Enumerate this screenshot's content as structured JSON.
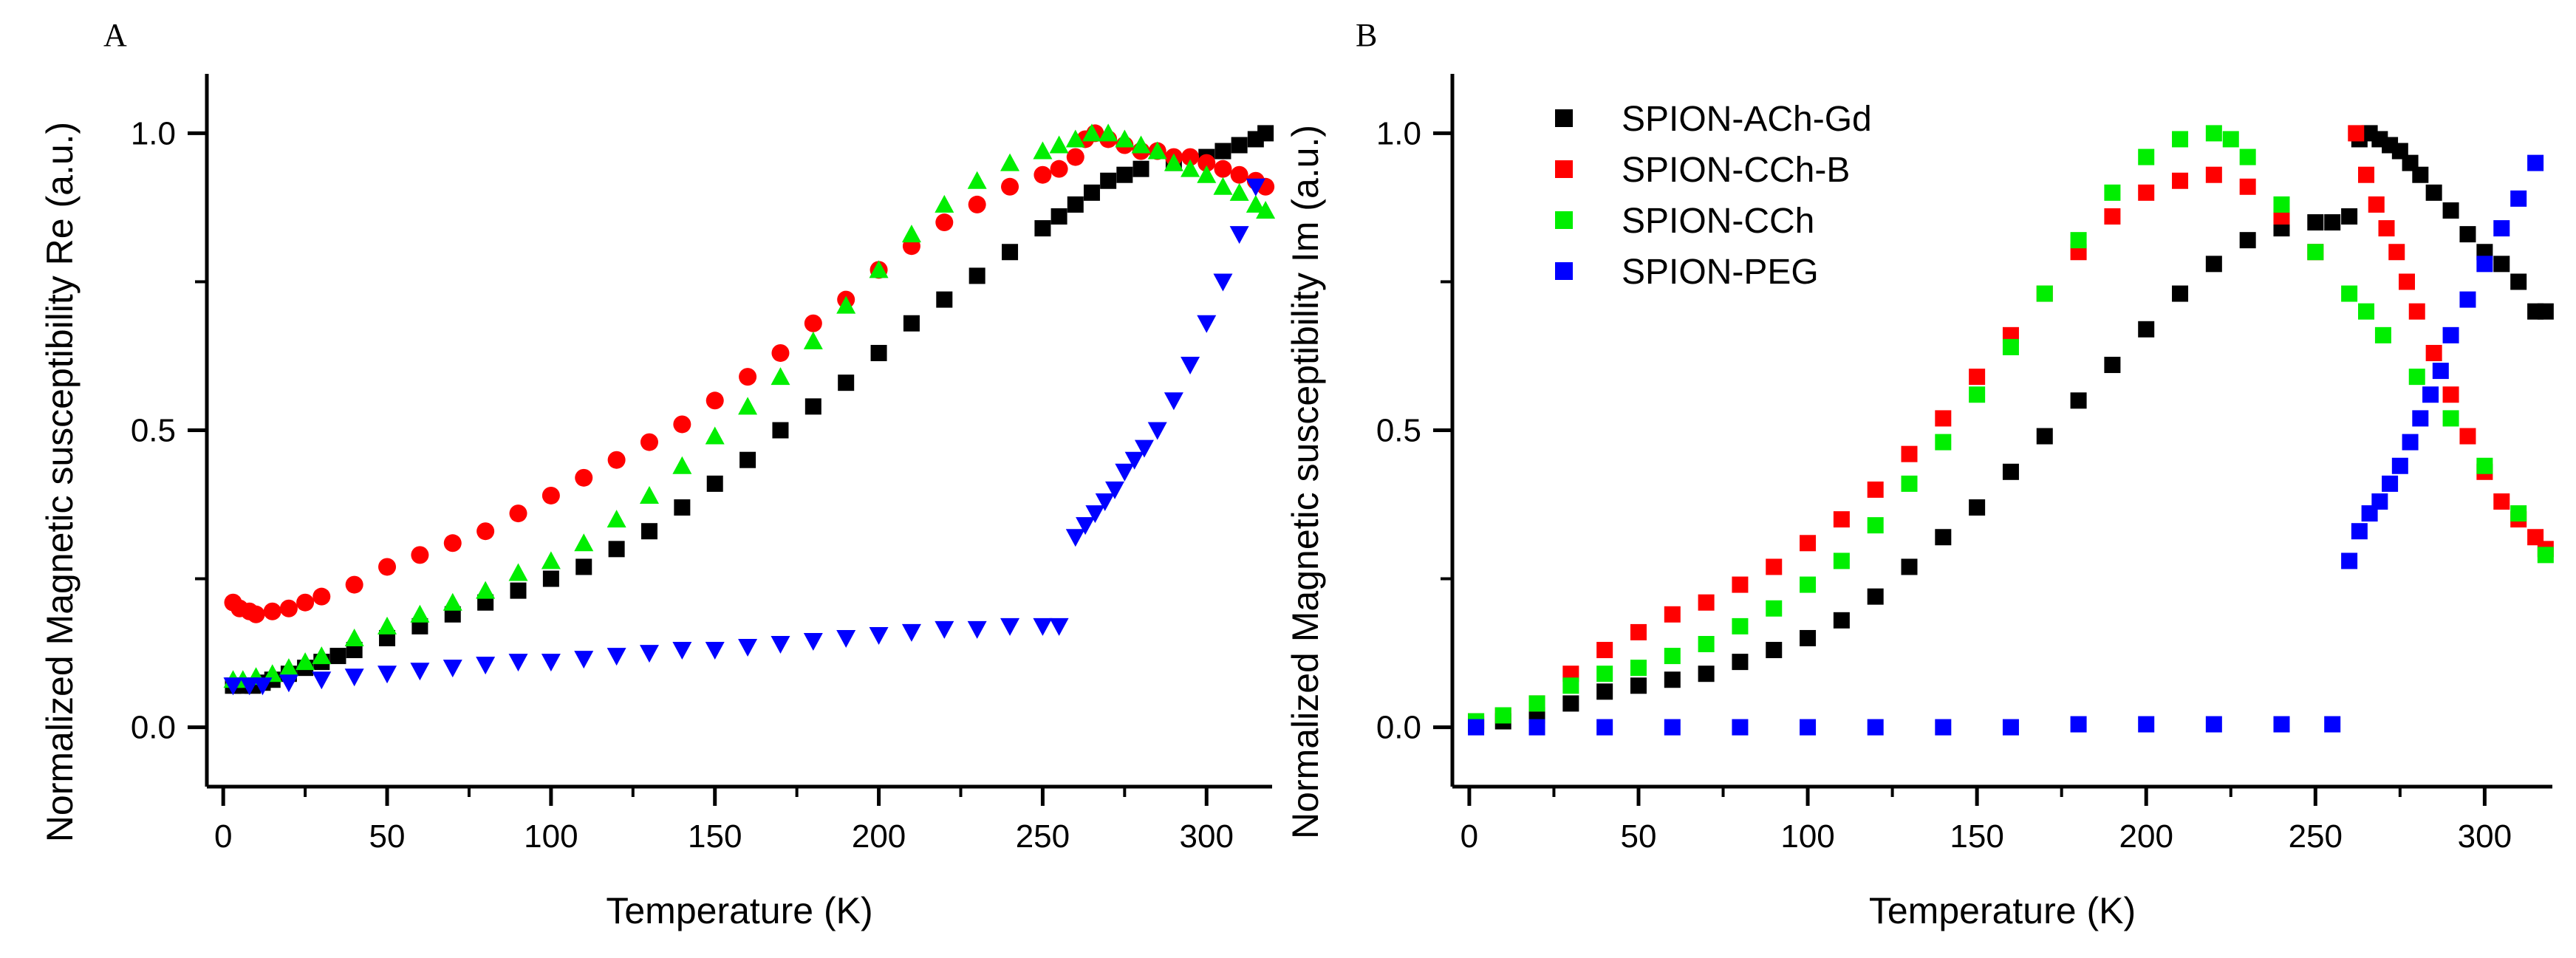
{
  "figure": {
    "panels": [
      "A",
      "B"
    ]
  },
  "legend": {
    "placement": "top-left of panel B",
    "entries": [
      {
        "name": "SPION-ACh-Gd",
        "color": "#000000"
      },
      {
        "name": "SPION-CCh-B",
        "color": "#ff0000"
      },
      {
        "name": "SPION-CCh",
        "color": "#00ee00"
      },
      {
        "name": "SPION-PEG",
        "color": "#0000ff"
      }
    ]
  },
  "chart_data": [
    {
      "type": "scatter",
      "panel": "A",
      "xlabel": "Temperature (K)",
      "ylabel": "Normalized Magnetic susceptibility Re (a.u.)",
      "xlim": [
        -5,
        320
      ],
      "ylim": [
        -0.1,
        1.1
      ],
      "xticks": [
        "0",
        "50",
        "100",
        "150",
        "200",
        "250",
        "300"
      ],
      "xtick_values": [
        0,
        50,
        100,
        150,
        200,
        250,
        300
      ],
      "yticks": [
        "0.0",
        "0.5",
        "1.0"
      ],
      "ytick_values": [
        0,
        0.5,
        1.0
      ],
      "yminor_values": [
        0.25,
        0.75
      ],
      "series": [
        {
          "name": "SPION-ACh-Gd",
          "color": "#000000",
          "marker": "square",
          "x": [
            3,
            6,
            9,
            12,
            15,
            20,
            25,
            30,
            35,
            40,
            50,
            60,
            70,
            80,
            90,
            100,
            110,
            120,
            130,
            140,
            150,
            160,
            170,
            180,
            190,
            200,
            210,
            220,
            230,
            240,
            250,
            255,
            260,
            265,
            270,
            275,
            280,
            290,
            300,
            305,
            310,
            315,
            318
          ],
          "y": [
            0.07,
            0.07,
            0.07,
            0.075,
            0.08,
            0.09,
            0.1,
            0.11,
            0.12,
            0.13,
            0.15,
            0.17,
            0.19,
            0.21,
            0.23,
            0.25,
            0.27,
            0.3,
            0.33,
            0.37,
            0.41,
            0.45,
            0.5,
            0.54,
            0.58,
            0.63,
            0.68,
            0.72,
            0.76,
            0.8,
            0.84,
            0.86,
            0.88,
            0.9,
            0.92,
            0.93,
            0.94,
            0.95,
            0.96,
            0.97,
            0.98,
            0.99,
            1.0
          ]
        },
        {
          "name": "SPION-CCh-B",
          "color": "#ff0000",
          "marker": "circle",
          "x": [
            3,
            5,
            8,
            10,
            15,
            20,
            25,
            30,
            40,
            50,
            60,
            70,
            80,
            90,
            100,
            110,
            120,
            130,
            140,
            150,
            160,
            170,
            180,
            190,
            200,
            210,
            220,
            230,
            240,
            250,
            255,
            260,
            263,
            266,
            270,
            275,
            280,
            285,
            290,
            295,
            300,
            305,
            310,
            315,
            318
          ],
          "y": [
            0.21,
            0.2,
            0.195,
            0.19,
            0.195,
            0.2,
            0.21,
            0.22,
            0.24,
            0.27,
            0.29,
            0.31,
            0.33,
            0.36,
            0.39,
            0.42,
            0.45,
            0.48,
            0.51,
            0.55,
            0.59,
            0.63,
            0.68,
            0.72,
            0.77,
            0.81,
            0.85,
            0.88,
            0.91,
            0.93,
            0.94,
            0.96,
            0.99,
            1.0,
            0.99,
            0.98,
            0.97,
            0.97,
            0.96,
            0.96,
            0.95,
            0.94,
            0.93,
            0.92,
            0.91
          ]
        },
        {
          "name": "SPION-CCh",
          "color": "#00ee00",
          "marker": "triangle-up",
          "x": [
            3,
            6,
            10,
            15,
            20,
            25,
            30,
            40,
            50,
            60,
            70,
            80,
            90,
            100,
            110,
            120,
            130,
            140,
            150,
            160,
            170,
            180,
            190,
            200,
            210,
            220,
            230,
            240,
            250,
            255,
            260,
            265,
            270,
            275,
            280,
            285,
            290,
            295,
            300,
            305,
            310,
            315,
            318
          ],
          "y": [
            0.08,
            0.08,
            0.085,
            0.09,
            0.1,
            0.11,
            0.12,
            0.15,
            0.17,
            0.19,
            0.21,
            0.23,
            0.26,
            0.28,
            0.31,
            0.35,
            0.39,
            0.44,
            0.49,
            0.54,
            0.59,
            0.65,
            0.71,
            0.77,
            0.83,
            0.88,
            0.92,
            0.95,
            0.97,
            0.98,
            0.99,
            1.0,
            1.0,
            0.99,
            0.98,
            0.97,
            0.95,
            0.94,
            0.93,
            0.91,
            0.9,
            0.88,
            0.87
          ]
        },
        {
          "name": "SPION-PEG",
          "color": "#0000ff",
          "marker": "triangle-down",
          "x": [
            3,
            8,
            12,
            20,
            30,
            40,
            50,
            60,
            70,
            80,
            90,
            100,
            110,
            120,
            130,
            140,
            150,
            160,
            170,
            180,
            190,
            200,
            210,
            220,
            230,
            240,
            250,
            255,
            260,
            263,
            266,
            269,
            272,
            275,
            278,
            281,
            285,
            290,
            295,
            300,
            305,
            310,
            315
          ],
          "y": [
            0.07,
            0.07,
            0.07,
            0.075,
            0.08,
            0.085,
            0.09,
            0.095,
            0.1,
            0.105,
            0.11,
            0.11,
            0.115,
            0.12,
            0.125,
            0.13,
            0.13,
            0.135,
            0.14,
            0.145,
            0.15,
            0.155,
            0.16,
            0.165,
            0.165,
            0.17,
            0.17,
            0.17,
            0.32,
            0.34,
            0.36,
            0.38,
            0.4,
            0.43,
            0.45,
            0.47,
            0.5,
            0.55,
            0.61,
            0.68,
            0.75,
            0.83,
            0.91
          ]
        }
      ]
    },
    {
      "type": "scatter",
      "panel": "B",
      "xlabel": "Temperature (K)",
      "ylabel": "Normalized Magnetic susceptibility Im (a.u.)",
      "xlim": [
        -5,
        320
      ],
      "ylim": [
        -0.1,
        1.1
      ],
      "xticks": [
        "0",
        "50",
        "100",
        "150",
        "200",
        "250",
        "300"
      ],
      "xtick_values": [
        0,
        50,
        100,
        150,
        200,
        250,
        300
      ],
      "yticks": [
        "0.0",
        "0.5",
        "1.0"
      ],
      "ytick_values": [
        0,
        0.5,
        1.0
      ],
      "yminor_values": [
        0.25,
        0.75
      ],
      "series": [
        {
          "name": "SPION-ACh-Gd",
          "color": "#000000",
          "marker": "square",
          "x": [
            2,
            10,
            20,
            30,
            40,
            50,
            60,
            70,
            80,
            90,
            100,
            110,
            120,
            130,
            140,
            150,
            160,
            170,
            180,
            190,
            200,
            210,
            220,
            230,
            240,
            250,
            255,
            260,
            263,
            266,
            269,
            272,
            275,
            278,
            281,
            285,
            290,
            295,
            300,
            305,
            310,
            315,
            318
          ],
          "y": [
            0.005,
            0.01,
            0.02,
            0.04,
            0.06,
            0.07,
            0.08,
            0.09,
            0.11,
            0.13,
            0.15,
            0.18,
            0.22,
            0.27,
            0.32,
            0.37,
            0.43,
            0.49,
            0.55,
            0.61,
            0.67,
            0.73,
            0.78,
            0.82,
            0.84,
            0.85,
            0.85,
            0.86,
            0.99,
            1.0,
            0.99,
            0.98,
            0.97,
            0.95,
            0.93,
            0.9,
            0.87,
            0.83,
            0.8,
            0.78,
            0.75,
            0.7,
            0.7
          ]
        },
        {
          "name": "SPION-CCh-B",
          "color": "#ff0000",
          "marker": "square",
          "x": [
            2,
            10,
            20,
            30,
            40,
            50,
            60,
            70,
            80,
            90,
            100,
            110,
            120,
            130,
            140,
            150,
            160,
            170,
            180,
            190,
            200,
            210,
            220,
            230,
            240,
            250,
            262,
            265,
            268,
            271,
            274,
            277,
            280,
            285,
            290,
            295,
            300,
            305,
            310,
            315,
            318
          ],
          "y": [
            0.01,
            0.02,
            0.04,
            0.09,
            0.13,
            0.16,
            0.19,
            0.21,
            0.24,
            0.27,
            0.31,
            0.35,
            0.4,
            0.46,
            0.52,
            0.59,
            0.66,
            0.73,
            0.8,
            0.86,
            0.9,
            0.92,
            0.93,
            0.91,
            0.86,
            0.8,
            1.0,
            0.93,
            0.88,
            0.84,
            0.8,
            0.75,
            0.7,
            0.63,
            0.56,
            0.49,
            0.43,
            0.38,
            0.35,
            0.32,
            0.3
          ]
        },
        {
          "name": "SPION-CCh",
          "color": "#00ee00",
          "marker": "square",
          "x": [
            2,
            10,
            20,
            30,
            40,
            50,
            60,
            70,
            80,
            90,
            100,
            110,
            120,
            130,
            140,
            150,
            160,
            170,
            180,
            190,
            200,
            210,
            220,
            225,
            230,
            240,
            250,
            260,
            265,
            270,
            280,
            290,
            300,
            310,
            318
          ],
          "y": [
            0.01,
            0.02,
            0.04,
            0.07,
            0.09,
            0.1,
            0.12,
            0.14,
            0.17,
            0.2,
            0.24,
            0.28,
            0.34,
            0.41,
            0.48,
            0.56,
            0.64,
            0.73,
            0.82,
            0.9,
            0.96,
            0.99,
            1.0,
            0.99,
            0.96,
            0.88,
            0.8,
            0.73,
            0.7,
            0.66,
            0.59,
            0.52,
            0.44,
            0.36,
            0.29
          ]
        },
        {
          "name": "SPION-PEG",
          "color": "#0000ff",
          "marker": "square",
          "x": [
            2,
            20,
            40,
            60,
            80,
            100,
            120,
            140,
            160,
            180,
            200,
            220,
            240,
            255,
            260,
            263,
            266,
            269,
            272,
            275,
            278,
            281,
            284,
            287,
            290,
            295,
            300,
            305,
            310,
            315
          ],
          "y": [
            0.0,
            0.0,
            0.0,
            0.0,
            0.0,
            0.0,
            0.0,
            0.0,
            0.0,
            0.005,
            0.005,
            0.005,
            0.005,
            0.005,
            0.28,
            0.33,
            0.36,
            0.38,
            0.41,
            0.44,
            0.48,
            0.52,
            0.56,
            0.6,
            0.66,
            0.72,
            0.78,
            0.84,
            0.89,
            0.95
          ]
        }
      ]
    }
  ]
}
